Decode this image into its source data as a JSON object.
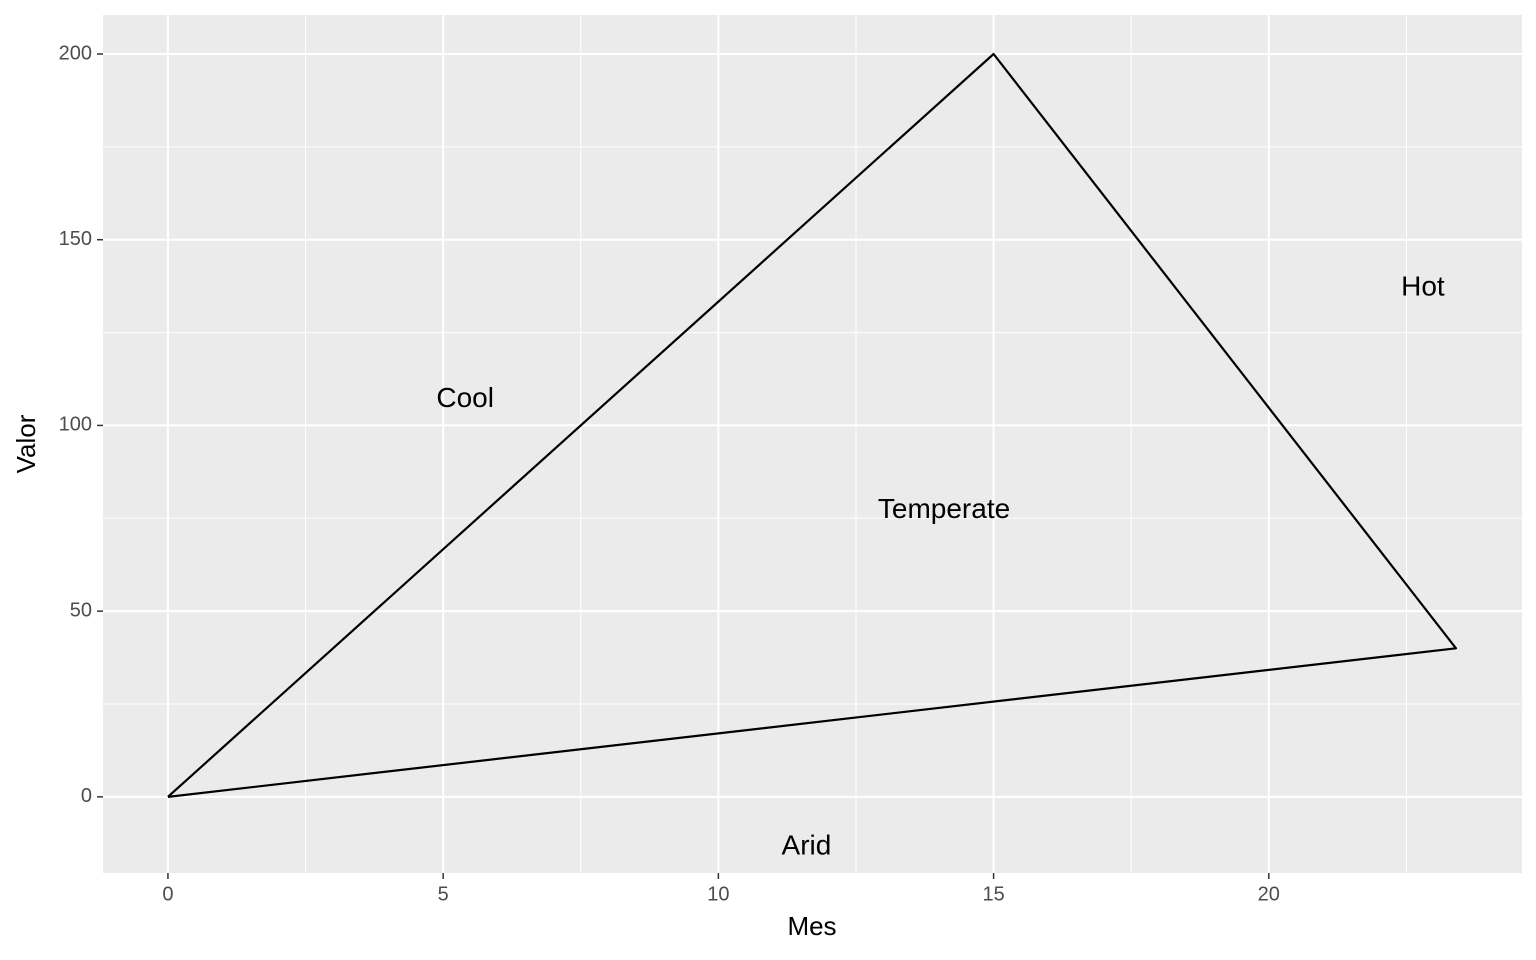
{
  "chart_data": {
    "type": "line",
    "x_label": "Mes",
    "y_label": "Valor",
    "series": [
      {
        "color": "#000000",
        "x": [
          0,
          15,
          23.4,
          0
        ],
        "values": [
          0,
          200,
          40,
          0
        ]
      }
    ],
    "annotations": [
      {
        "text": "Cool",
        "x": 5.4,
        "y": 107
      },
      {
        "text": "Temperate",
        "x": 14.1,
        "y": 77
      },
      {
        "text": "Hot",
        "x": 22.8,
        "y": 137
      },
      {
        "text": "Arid",
        "x": 11.6,
        "y": -13.5
      }
    ],
    "xlim": [
      -1.18,
      24.6
    ],
    "ylim": [
      -20.5,
      210.5
    ],
    "xticks": [
      0,
      5,
      10,
      15,
      20
    ],
    "yticks": [
      0,
      50,
      100,
      150,
      200
    ],
    "grid": true,
    "minor_grid": true
  }
}
